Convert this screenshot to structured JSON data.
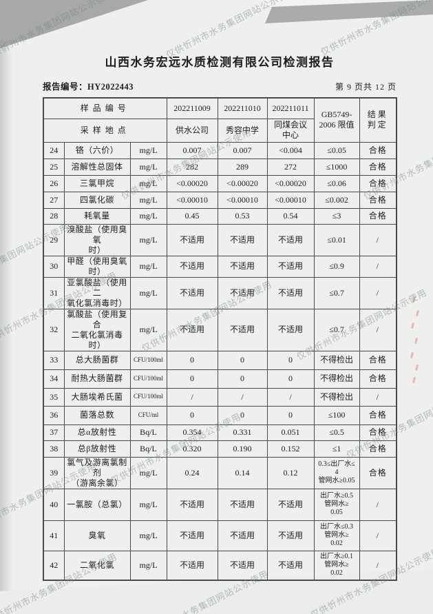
{
  "page": {
    "title": "山西水务宏远水质检测有限公司检测报告",
    "report_no": "报告编号：HY2022443",
    "page_indicator": "第 9 页共 12 页"
  },
  "watermark": {
    "text": "仅供忻州市水务集团网站公示使用"
  },
  "table": {
    "header": {
      "sample_id_label": "样品编号",
      "sample_site_label": "采样地点",
      "sample_ids": [
        "202211009",
        "202211010",
        "202211011"
      ],
      "sample_sites": [
        "供水公司",
        "秀容中学",
        "同煤会议\n中心"
      ],
      "limit_label": "GB5749-\n2006 限值",
      "result_label": "结果\n判定"
    },
    "rows": [
      {
        "no": "24",
        "name": "铬（六价）",
        "unit": "mg/L",
        "v": [
          "0.007",
          "0.007",
          "<0.004"
        ],
        "limit": "≤0.05",
        "result": "合格"
      },
      {
        "no": "25",
        "name": "溶解性总固体",
        "unit": "mg/L",
        "v": [
          "282",
          "289",
          "272"
        ],
        "limit": "≤1000",
        "result": "合格"
      },
      {
        "no": "26",
        "name": "三氯甲烷",
        "unit": "mg/L",
        "v": [
          "<0.00020",
          "<0.00020",
          "<0.00020"
        ],
        "limit": "≤0.06",
        "result": "合格"
      },
      {
        "no": "27",
        "name": "四氯化碳",
        "unit": "mg/L",
        "v": [
          "<0.00010",
          "<0.00010",
          "<0.00010"
        ],
        "limit": "≤0.002",
        "result": "合格"
      },
      {
        "no": "28",
        "name": "耗氧量",
        "unit": "mg/L",
        "v": [
          "0.45",
          "0.53",
          "0.54"
        ],
        "limit": "≤3",
        "result": "合格"
      },
      {
        "no": "29",
        "name": "溴酸盐（使用臭氧\n时）",
        "unit": "mg/L",
        "v": [
          "不适用",
          "不适用",
          "不适用"
        ],
        "limit": "≤0.01",
        "result": "/"
      },
      {
        "no": "30",
        "name": "甲醛（使用臭氧时）",
        "unit": "mg/L",
        "v": [
          "不适用",
          "不适用",
          "不适用"
        ],
        "limit": "≤0.9",
        "result": "/"
      },
      {
        "no": "31",
        "name": "亚氯酸盐（使用二\n氧化氯消毒时）",
        "unit": "mg/L",
        "v": [
          "不适用",
          "不适用",
          "不适用"
        ],
        "limit": "≤0.7",
        "result": "/"
      },
      {
        "no": "32",
        "name": "氯酸盐（使用复合\n二氧化氯消毒时）",
        "unit": "mg/L",
        "v": [
          "不适用",
          "不适用",
          "不适用"
        ],
        "limit": "≤0.7",
        "result": "/"
      },
      {
        "no": "33",
        "name": "总大肠菌群",
        "unit": "CFU/100ml",
        "v": [
          "0",
          "0",
          "0"
        ],
        "limit": "不得检出",
        "result": "合格"
      },
      {
        "no": "34",
        "name": "耐热大肠菌群",
        "unit": "CFU/100ml",
        "v": [
          "0",
          "0",
          "0"
        ],
        "limit": "不得检出",
        "result": "合格"
      },
      {
        "no": "35",
        "name": "大肠埃希氏菌",
        "unit": "CFU/100ml",
        "v": [
          "/",
          "/",
          "/"
        ],
        "limit": "不得检出",
        "result": "/"
      },
      {
        "no": "36",
        "name": "菌落总数",
        "unit": "CFU/ml",
        "v": [
          "0",
          "0",
          "0"
        ],
        "limit": "≤100",
        "result": "合格"
      },
      {
        "no": "37",
        "name": "总α放射性",
        "unit": "Bq/L",
        "v": [
          "0.354",
          "0.331",
          "0.051"
        ],
        "limit": "≤0.5",
        "result": "合格"
      },
      {
        "no": "38",
        "name": "总β放射性",
        "unit": "Bq/L",
        "v": [
          "0.320",
          "0.190",
          "0.152"
        ],
        "limit": "≤1",
        "result": "合格"
      },
      {
        "no": "39",
        "name": "氯气及游离氯制剂\n（游离余氯）",
        "unit": "mg/L",
        "v": [
          "0.24",
          "0.14",
          "0.12"
        ],
        "limit": "0.3≤出厂水≤\n4\n管网水≥0.05",
        "result": "合格"
      },
      {
        "no": "40",
        "name": "一氯胺（总氯）",
        "unit": "mg/L",
        "v": [
          "不适用",
          "不适用",
          "不适用"
        ],
        "limit": "出厂水≥0.5\n管网水≥\n0.05",
        "result": "/"
      },
      {
        "no": "41",
        "name": "臭氧",
        "unit": "mg/L",
        "v": [
          "不适用",
          "不适用",
          "不适用"
        ],
        "limit": "出厂水≤0.3\n管网水≥\n0.02",
        "result": "/"
      },
      {
        "no": "42",
        "name": "二氧化氯",
        "unit": "mg/L",
        "v": [
          "不适用",
          "不适用",
          "不适用"
        ],
        "limit": "出厂水≥0.1\n管网水≥\n0.02",
        "result": "/"
      }
    ]
  }
}
